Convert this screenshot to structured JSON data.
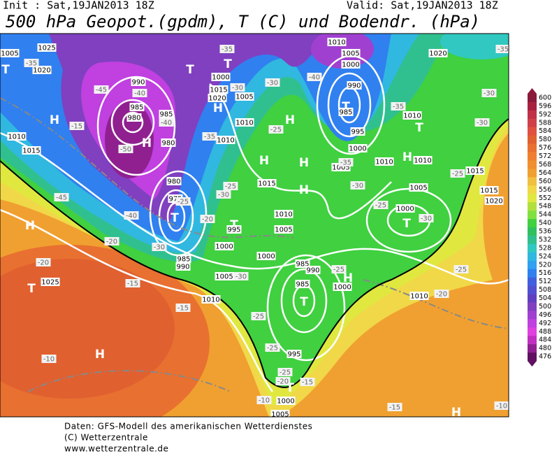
{
  "header": {
    "init": "Init : Sat,19JAN2013 18Z",
    "valid": "Valid: Sat,19JAN2013 18Z",
    "title": "500 hPa Geopot.(gpdm), T (C) und Bodendr. (hPa)"
  },
  "map": {
    "pressure_centers": [
      "T",
      "T",
      "T",
      "H",
      "H",
      "H",
      "H",
      "H",
      "H",
      "H",
      "T",
      "T",
      "H",
      "T",
      "H",
      "T",
      "T",
      "H",
      "T",
      "H",
      "T",
      "H",
      "T"
    ],
    "isobar_labels": [
      "1025",
      "1005",
      "1020",
      "1010",
      "1015",
      "990",
      "985",
      "980",
      "985",
      "980",
      "980",
      "975",
      "1000",
      "1015",
      "1020",
      "1005",
      "1010",
      "1010",
      "1015",
      "1010",
      "1005",
      "995",
      "1000",
      "1000",
      "985",
      "990",
      "1005",
      "1025",
      "1010",
      "985",
      "990",
      "985",
      "995",
      "1000",
      "1005",
      "1010",
      "1005",
      "1000",
      "990",
      "985",
      "995",
      "1000",
      "1005",
      "1010",
      "1020",
      "1010",
      "1010",
      "1005",
      "1000",
      "1010",
      "1015",
      "1015",
      "1020",
      "1000"
    ],
    "temperature_labels": [
      "-35",
      "-45",
      "-40",
      "-15",
      "-40",
      "-50",
      "-35",
      "-30",
      "-35",
      "-30",
      "-40",
      "-35",
      "-30",
      "-30",
      "-25",
      "-35",
      "-30",
      "-25",
      "-30",
      "-25",
      "-25",
      "-30",
      "-25",
      "-25",
      "-25",
      "-25",
      "-20",
      "-15",
      "-10",
      "-15",
      "-10",
      "-10",
      "-15",
      "-15",
      "-20",
      "-20",
      "-30",
      "-25",
      "-20",
      "-25",
      "-30",
      "-20",
      "-45",
      "-40",
      "-35"
    ]
  },
  "colorbar": {
    "levels": [
      600,
      596,
      592,
      588,
      584,
      580,
      576,
      572,
      568,
      564,
      560,
      556,
      552,
      548,
      544,
      540,
      536,
      532,
      528,
      524,
      520,
      516,
      512,
      508,
      504,
      500,
      496,
      492,
      488,
      484,
      480,
      476
    ],
    "colors": [
      "#8b1a3a",
      "#a82040",
      "#c03048",
      "#d04048",
      "#e05040",
      "#e06030",
      "#e87030",
      "#f08030",
      "#f09030",
      "#f0a030",
      "#f0c040",
      "#f0d848",
      "#e0e840",
      "#b0e040",
      "#80e040",
      "#40d040",
      "#30c060",
      "#30c090",
      "#30c8c0",
      "#30b8e0",
      "#30a0f0",
      "#3080f0",
      "#4060e0",
      "#5050d0",
      "#6040c0",
      "#8040c0",
      "#a040d0",
      "#c040e0",
      "#e040e0",
      "#c030c0",
      "#902090",
      "#601060"
    ]
  },
  "footer": {
    "line1": "Daten: GFS-Modell des amerikanischen Wetterdienstes",
    "line2": "(C) Wetterzentrale",
    "line3": "www.wetterzentrale.de"
  }
}
